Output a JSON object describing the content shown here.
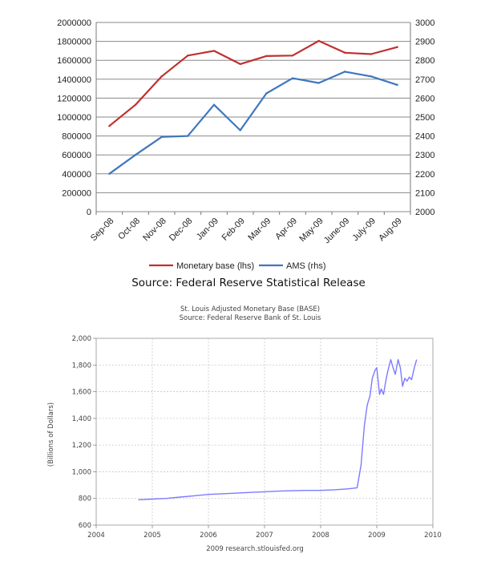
{
  "chart_data": [
    {
      "type": "line",
      "categories": [
        "Sep-08",
        "Oct-08",
        "Nov-08",
        "Dec-08",
        "Jan-09",
        "Feb-09",
        "Mar-09",
        "Apr-09",
        "May-09",
        "June-09",
        "July-09",
        "Aug-09"
      ],
      "series": [
        {
          "name": "Monetary base (lhs)",
          "axis": "left",
          "color": "#c0302f",
          "values": [
            905000,
            1130000,
            1430000,
            1650000,
            1700000,
            1560000,
            1645000,
            1650000,
            1805000,
            1680000,
            1665000,
            1740000
          ]
        },
        {
          "name": "AMS (rhs)",
          "axis": "right",
          "color": "#3f77be",
          "values": [
            2200,
            2300,
            2395,
            2400,
            2565,
            2430,
            2625,
            2705,
            2680,
            2740,
            2715,
            2670
          ]
        }
      ],
      "y_left": {
        "min": 0,
        "max": 2000000,
        "ticks": [
          "0",
          "200000",
          "400000",
          "600000",
          "800000",
          "1000000",
          "1200000",
          "1400000",
          "1600000",
          "1800000",
          "2000000"
        ]
      },
      "y_right": {
        "min": 2000,
        "max": 3000,
        "ticks": [
          "2000",
          "2100",
          "2200",
          "2300",
          "2400",
          "2500",
          "2600",
          "2700",
          "2800",
          "2900",
          "3000"
        ]
      },
      "legend": [
        "Monetary base (lhs)",
        "AMS (rhs)"
      ],
      "legend_position": "bottom",
      "grid": true,
      "source": "Source: Federal Reserve Statistical Release"
    },
    {
      "type": "line",
      "title": "St. Louis Adjusted Monetary Base (BASE)",
      "subtitle": "Source: Federal Reserve Bank of St. Louis",
      "ylabel": "(Billions of Dollars)",
      "xlabel": "2009 research.stlouisfed.org",
      "color": "#7b7bff",
      "xlim": [
        2004,
        2010
      ],
      "ylim": [
        600,
        2000
      ],
      "x_ticks": [
        "2004",
        "2005",
        "2006",
        "2007",
        "2008",
        "2009",
        "2010"
      ],
      "y_ticks": [
        "600",
        "800",
        "1,000",
        "1,200",
        "1,400",
        "1,600",
        "1,800",
        "2,000"
      ],
      "grid": true,
      "x": [
        2004.75,
        2005.0,
        2005.25,
        2005.5,
        2005.75,
        2006.0,
        2006.25,
        2006.5,
        2006.75,
        2007.0,
        2007.25,
        2007.5,
        2007.75,
        2008.0,
        2008.25,
        2008.5,
        2008.65,
        2008.72,
        2008.78,
        2008.83,
        2008.88,
        2008.92,
        2008.97,
        2009.0,
        2009.05,
        2009.08,
        2009.12,
        2009.17,
        2009.2,
        2009.25,
        2009.29,
        2009.33,
        2009.38,
        2009.42,
        2009.46,
        2009.5,
        2009.54,
        2009.58,
        2009.62,
        2009.67,
        2009.71
      ],
      "y": [
        790,
        795,
        800,
        810,
        820,
        830,
        835,
        840,
        845,
        850,
        855,
        858,
        860,
        860,
        865,
        872,
        880,
        1050,
        1350,
        1500,
        1570,
        1700,
        1760,
        1780,
        1580,
        1620,
        1580,
        1700,
        1760,
        1840,
        1780,
        1730,
        1840,
        1780,
        1640,
        1700,
        1680,
        1710,
        1690,
        1780,
        1840
      ]
    }
  ]
}
